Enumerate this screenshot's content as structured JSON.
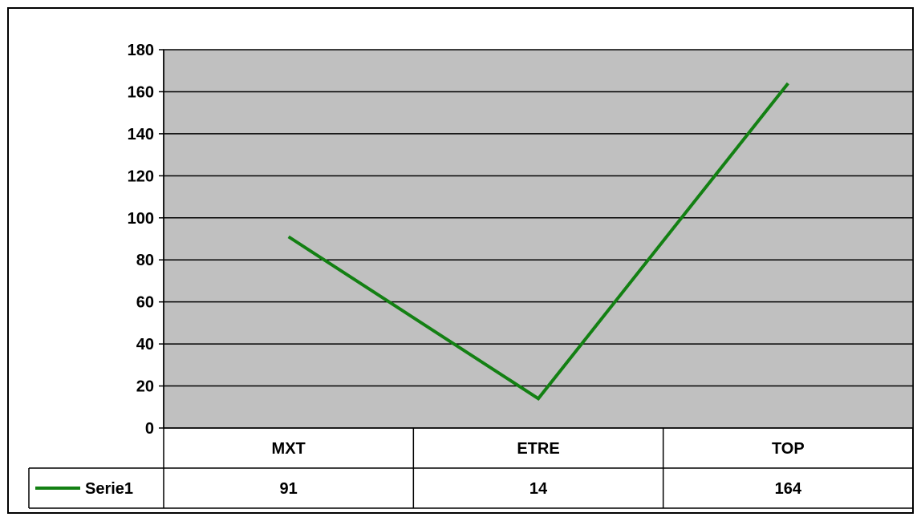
{
  "colors": {
    "plot_background": "#c0c0c0",
    "series_line": "#138013",
    "gridline": "#000000",
    "border": "#000000",
    "page_background": "#ffffff"
  },
  "chart_data": {
    "type": "line",
    "title": "",
    "xlabel": "",
    "ylabel": "",
    "categories": [
      "MXT",
      "ETRE",
      "TOP"
    ],
    "series": [
      {
        "name": "Serie1",
        "values": [
          91,
          14,
          164
        ],
        "value_labels": [
          "91",
          "14",
          "164"
        ]
      }
    ],
    "ylim": [
      0,
      180
    ],
    "y_ticks": [
      0,
      20,
      40,
      60,
      80,
      100,
      120,
      140,
      160,
      180
    ],
    "y_tick_labels": [
      "0",
      "20",
      "40",
      "60",
      "80",
      "100",
      "120",
      "140",
      "160",
      "180"
    ],
    "grid": true,
    "legend_placement": "data-table-left",
    "has_data_table": true
  }
}
